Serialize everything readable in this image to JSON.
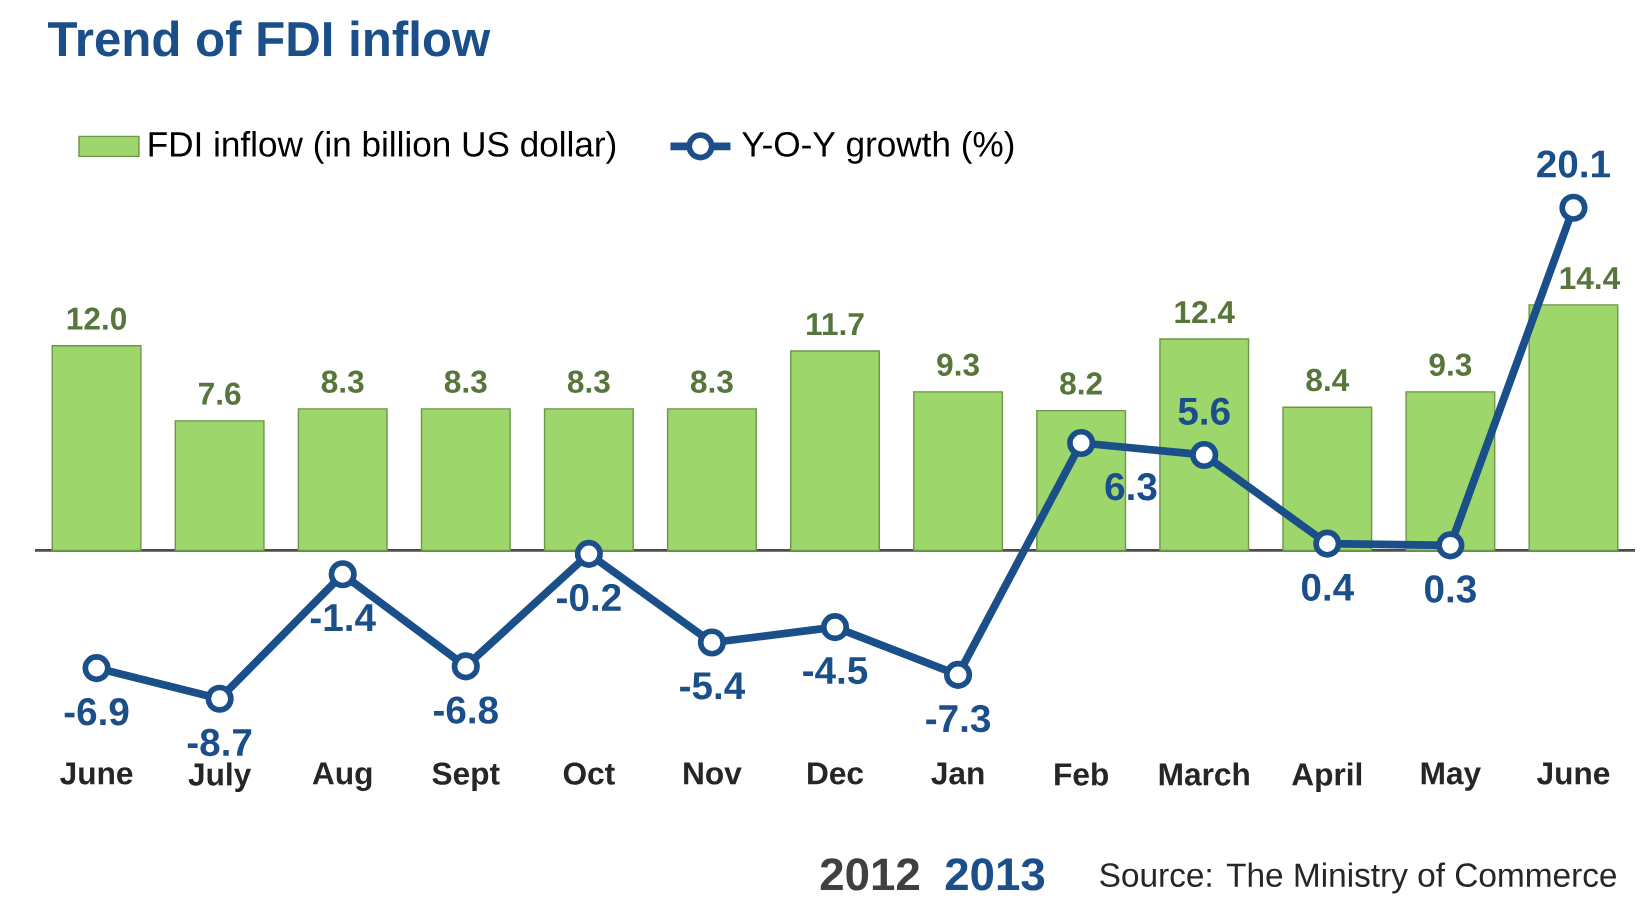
{
  "chart_data": {
    "type": "bar",
    "title": "Trend of FDI inflow",
    "categories": [
      "June",
      "July",
      "Aug",
      "Sept",
      "Oct",
      "Nov",
      "Dec",
      "Jan",
      "Feb",
      "March",
      "April",
      "May",
      "June"
    ],
    "series": [
      {
        "name": "FDI inflow (in billion US dollar)",
        "color": "#9dd66b",
        "values": [
          12.0,
          7.6,
          8.3,
          8.3,
          8.3,
          8.3,
          11.7,
          9.3,
          8.2,
          12.4,
          8.4,
          9.3,
          14.4
        ],
        "value_labels": [
          "12.0",
          "7.6",
          "8.3",
          "8.3",
          "8.3",
          "8.3",
          "11.7",
          "9.3",
          "8.2",
          "12.4",
          "8.4",
          "9.3",
          "14.4"
        ]
      },
      {
        "name": "Y-O-Y growth (%)",
        "type": "line",
        "color": "#1b4f8a",
        "marker": "circle",
        "values": [
          -6.9,
          -8.7,
          -1.4,
          -6.8,
          -0.2,
          -5.4,
          -4.5,
          -7.3,
          6.3,
          5.6,
          0.4,
          0.3,
          20.1
        ],
        "value_labels": [
          "-6.9",
          "-8.7",
          "-1.4",
          "-6.8",
          "-0.2",
          "-5.4",
          "-4.5",
          "-7.3",
          "6.3",
          "5.6",
          "0.4",
          "0.3",
          "20.1"
        ]
      }
    ],
    "legend": "top",
    "annotations": [
      "2012",
      "2013",
      "Source: The Ministry of Commerce"
    ]
  }
}
